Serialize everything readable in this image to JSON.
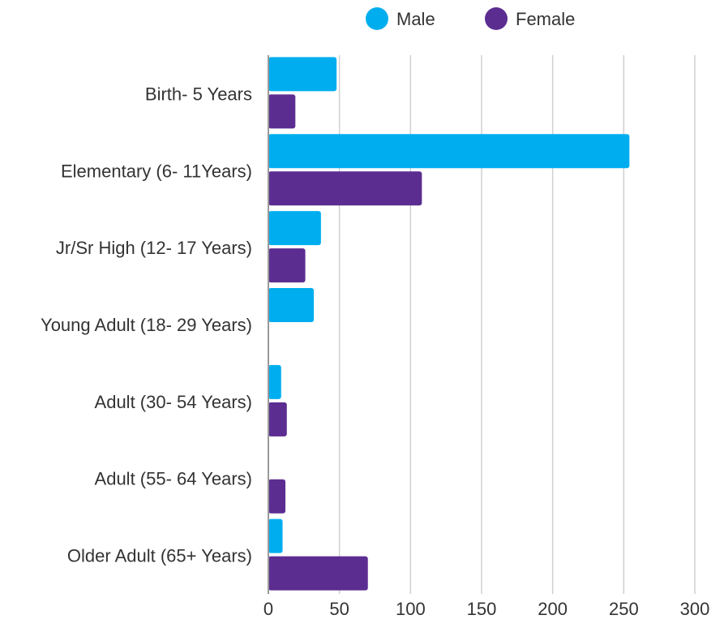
{
  "chart_data": {
    "type": "bar",
    "orientation": "horizontal",
    "categories": [
      "Birth- 5 Years",
      "Elementary (6- 11Years)",
      "Jr/Sr High (12- 17 Years)",
      "Young Adult (18- 29 Years)",
      "Adult (30- 54 Years)",
      "Adult (55- 64 Years)",
      "Older Adult (65+ Years)"
    ],
    "series": [
      {
        "name": "Male",
        "color": "#00AEEF",
        "values": [
          48,
          254,
          37,
          32,
          9,
          0,
          10
        ]
      },
      {
        "name": "Female",
        "color": "#5C2D91",
        "values": [
          19,
          108,
          26,
          0,
          13,
          12,
          70
        ]
      }
    ],
    "xlim": [
      0,
      300
    ],
    "xticks": [
      "0",
      "50",
      "100",
      "150",
      "200",
      "250",
      "300"
    ],
    "grid": true,
    "legend_position": "top-right",
    "title": "",
    "xlabel": "",
    "ylabel": ""
  }
}
